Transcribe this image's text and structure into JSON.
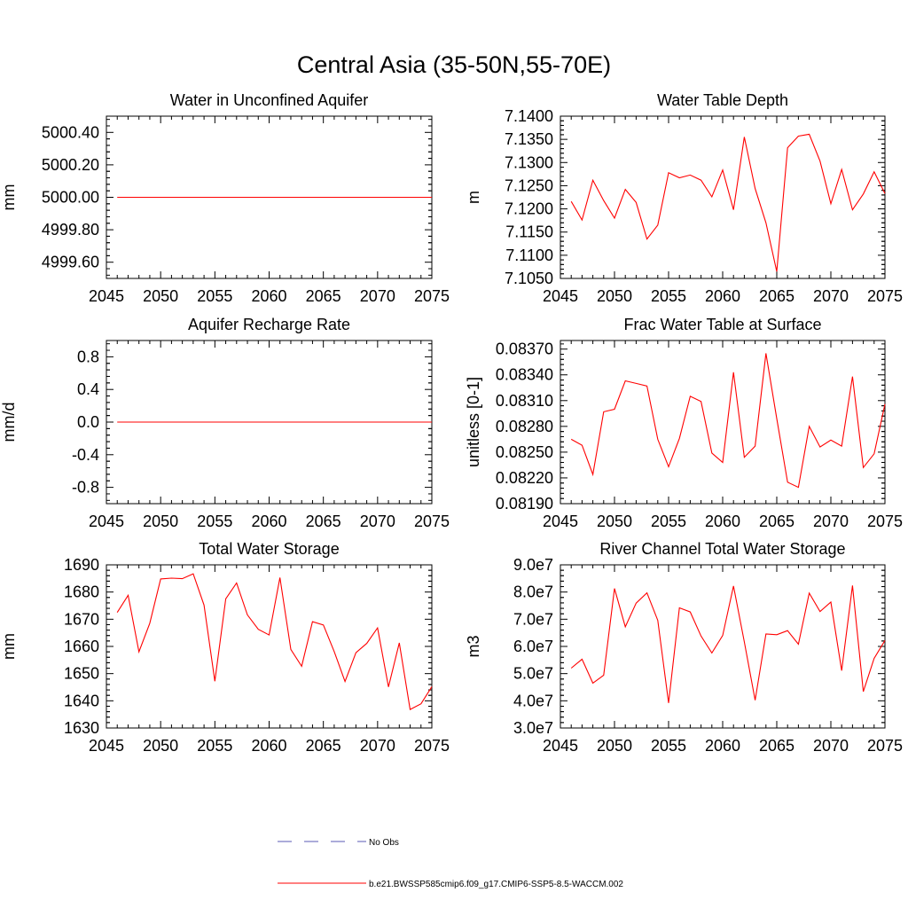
{
  "figure_title": "Central Asia (35-50N,55-70E)",
  "chart_data": [
    {
      "type": "line",
      "title": "Water in Unconfined Aquifer",
      "xlabel": "",
      "ylabel": "mm",
      "xlim": [
        2045,
        2075
      ],
      "ylim": [
        4999.5,
        5000.5
      ],
      "xticks": [
        2045,
        2050,
        2055,
        2060,
        2065,
        2070,
        2075
      ],
      "yticks": [
        4999.6,
        4999.8,
        5000.0,
        5000.2,
        5000.4
      ],
      "ytick_labels": [
        "4999.60",
        "4999.80",
        "5000.00",
        "5000.20",
        "5000.40"
      ],
      "x": [
        2046,
        2075
      ],
      "values": [
        5000.0,
        5000.0
      ]
    },
    {
      "type": "line",
      "title": "Water Table Depth",
      "xlabel": "",
      "ylabel": "m",
      "xlim": [
        2045,
        2075
      ],
      "ylim": [
        7.105,
        7.14
      ],
      "xticks": [
        2045,
        2050,
        2055,
        2060,
        2065,
        2070,
        2075
      ],
      "yticks": [
        7.105,
        7.11,
        7.115,
        7.12,
        7.125,
        7.13,
        7.135,
        7.14
      ],
      "ytick_labels": [
        "7.1050",
        "7.1100",
        "7.1150",
        "7.1200",
        "7.1250",
        "7.1300",
        "7.1350",
        "7.1400"
      ],
      "x": [
        2046,
        2047,
        2048,
        2049,
        2050,
        2051,
        2052,
        2053,
        2054,
        2055,
        2056,
        2057,
        2058,
        2059,
        2060,
        2061,
        2062,
        2063,
        2064,
        2065,
        2066,
        2067,
        2068,
        2069,
        2070,
        2071,
        2072,
        2073,
        2074,
        2075
      ],
      "values": [
        7.1216,
        7.1176,
        7.1262,
        7.1218,
        7.118,
        7.1242,
        7.1214,
        7.1135,
        7.1165,
        7.1278,
        7.1267,
        7.1273,
        7.1262,
        7.1226,
        7.1284,
        7.1198,
        7.1355,
        7.1244,
        7.117,
        7.1065,
        7.1332,
        7.1357,
        7.1361,
        7.1303,
        7.1211,
        7.1285,
        7.1198,
        7.1232,
        7.128,
        7.1233
      ]
    },
    {
      "type": "line",
      "title": "Aquifer Recharge Rate",
      "xlabel": "",
      "ylabel": "mm/d",
      "xlim": [
        2045,
        2075
      ],
      "ylim": [
        -1.0,
        1.0
      ],
      "xticks": [
        2045,
        2050,
        2055,
        2060,
        2065,
        2070,
        2075
      ],
      "yticks": [
        -0.8,
        -0.4,
        0.0,
        0.4,
        0.8
      ],
      "ytick_labels": [
        "-0.8",
        "-0.4",
        "0.0",
        "0.4",
        "0.8"
      ],
      "x": [
        2046,
        2075
      ],
      "values": [
        0.0,
        0.0
      ]
    },
    {
      "type": "line",
      "title": "Frac Water Table at Surface",
      "xlabel": "",
      "ylabel": "unitless [0-1]",
      "xlim": [
        2045,
        2075
      ],
      "ylim": [
        0.0819,
        0.0838
      ],
      "xticks": [
        2045,
        2050,
        2055,
        2060,
        2065,
        2070,
        2075
      ],
      "yticks": [
        0.0819,
        0.0822,
        0.0825,
        0.0828,
        0.0831,
        0.0834,
        0.0837
      ],
      "ytick_labels": [
        "0.08190",
        "0.08220",
        "0.08250",
        "0.08280",
        "0.08310",
        "0.08340",
        "0.08370"
      ],
      "x": [
        2046,
        2047,
        2048,
        2049,
        2050,
        2051,
        2052,
        2053,
        2054,
        2055,
        2056,
        2057,
        2058,
        2059,
        2060,
        2061,
        2062,
        2063,
        2064,
        2065,
        2066,
        2067,
        2068,
        2069,
        2070,
        2071,
        2072,
        2073,
        2074,
        2075
      ],
      "values": [
        0.08265,
        0.08258,
        0.08224,
        0.08297,
        0.083,
        0.08333,
        0.0833,
        0.08327,
        0.08265,
        0.08233,
        0.08266,
        0.08315,
        0.08309,
        0.08249,
        0.08238,
        0.08343,
        0.08244,
        0.08257,
        0.08365,
        0.08289,
        0.08215,
        0.08209,
        0.0828,
        0.08256,
        0.08264,
        0.08257,
        0.08338,
        0.08232,
        0.08248,
        0.08306
      ]
    },
    {
      "type": "line",
      "title": "Total Water Storage",
      "xlabel": "",
      "ylabel": "mm",
      "xlim": [
        2045,
        2075
      ],
      "ylim": [
        1630,
        1690
      ],
      "xticks": [
        2045,
        2050,
        2055,
        2060,
        2065,
        2070,
        2075
      ],
      "yticks": [
        1630,
        1640,
        1650,
        1660,
        1670,
        1680,
        1690
      ],
      "ytick_labels": [
        "1630",
        "1640",
        "1650",
        "1660",
        "1670",
        "1680",
        "1690"
      ],
      "x": [
        2046,
        2047,
        2048,
        2049,
        2050,
        2051,
        2052,
        2053,
        2054,
        2055,
        2056,
        2057,
        2058,
        2059,
        2060,
        2061,
        2062,
        2063,
        2064,
        2065,
        2066,
        2067,
        2068,
        2069,
        2070,
        2071,
        2072,
        2073,
        2074,
        2075
      ],
      "values": [
        1672.5,
        1678.8,
        1658.0,
        1668.5,
        1684.8,
        1685.1,
        1684.9,
        1686.7,
        1675.2,
        1647.2,
        1677.5,
        1683.3,
        1671.6,
        1666.3,
        1664.2,
        1685.3,
        1658.9,
        1652.7,
        1669.1,
        1667.9,
        1658.1,
        1647.1,
        1657.7,
        1661.1,
        1666.8,
        1645.1,
        1661.3,
        1636.8,
        1638.9,
        1645.2
      ]
    },
    {
      "type": "line",
      "title": "River Channel Total Water Storage",
      "xlabel": "",
      "ylabel": "m3",
      "xlim": [
        2045,
        2075
      ],
      "ylim": [
        30000000,
        90000000
      ],
      "xticks": [
        2045,
        2050,
        2055,
        2060,
        2065,
        2070,
        2075
      ],
      "yticks": [
        30000000,
        40000000,
        50000000,
        60000000,
        70000000,
        80000000,
        90000000
      ],
      "ytick_labels": [
        "3.0e7",
        "4.0e7",
        "5.0e7",
        "6.0e7",
        "7.0e7",
        "8.0e7",
        "9.0e7"
      ],
      "x": [
        2046,
        2047,
        2048,
        2049,
        2050,
        2051,
        2052,
        2053,
        2054,
        2055,
        2056,
        2057,
        2058,
        2059,
        2060,
        2061,
        2062,
        2063,
        2064,
        2065,
        2066,
        2067,
        2068,
        2069,
        2070,
        2071,
        2072,
        2073,
        2074,
        2075
      ],
      "values": [
        52000000,
        55300000,
        46500000,
        49400000,
        81300000,
        67200000,
        75900000,
        79700000,
        69600000,
        39200000,
        74200000,
        72700000,
        63800000,
        57600000,
        64000000,
        82200000,
        61700000,
        40200000,
        64600000,
        64300000,
        65800000,
        60800000,
        79600000,
        72800000,
        76300000,
        51100000,
        82400000,
        43400000,
        55600000,
        62200000
      ]
    }
  ],
  "legend": [
    {
      "label": "No Obs",
      "color": "#5a5ab4",
      "style": "dashed"
    },
    {
      "label": "b.e21.BWSSP585cmip6.f09_g17.CMIP6-SSP5-8.5-WACCM.002",
      "color": "#ff0000",
      "style": "solid"
    }
  ],
  "colors": {
    "line": "#ff0000",
    "axis": "#000000"
  }
}
